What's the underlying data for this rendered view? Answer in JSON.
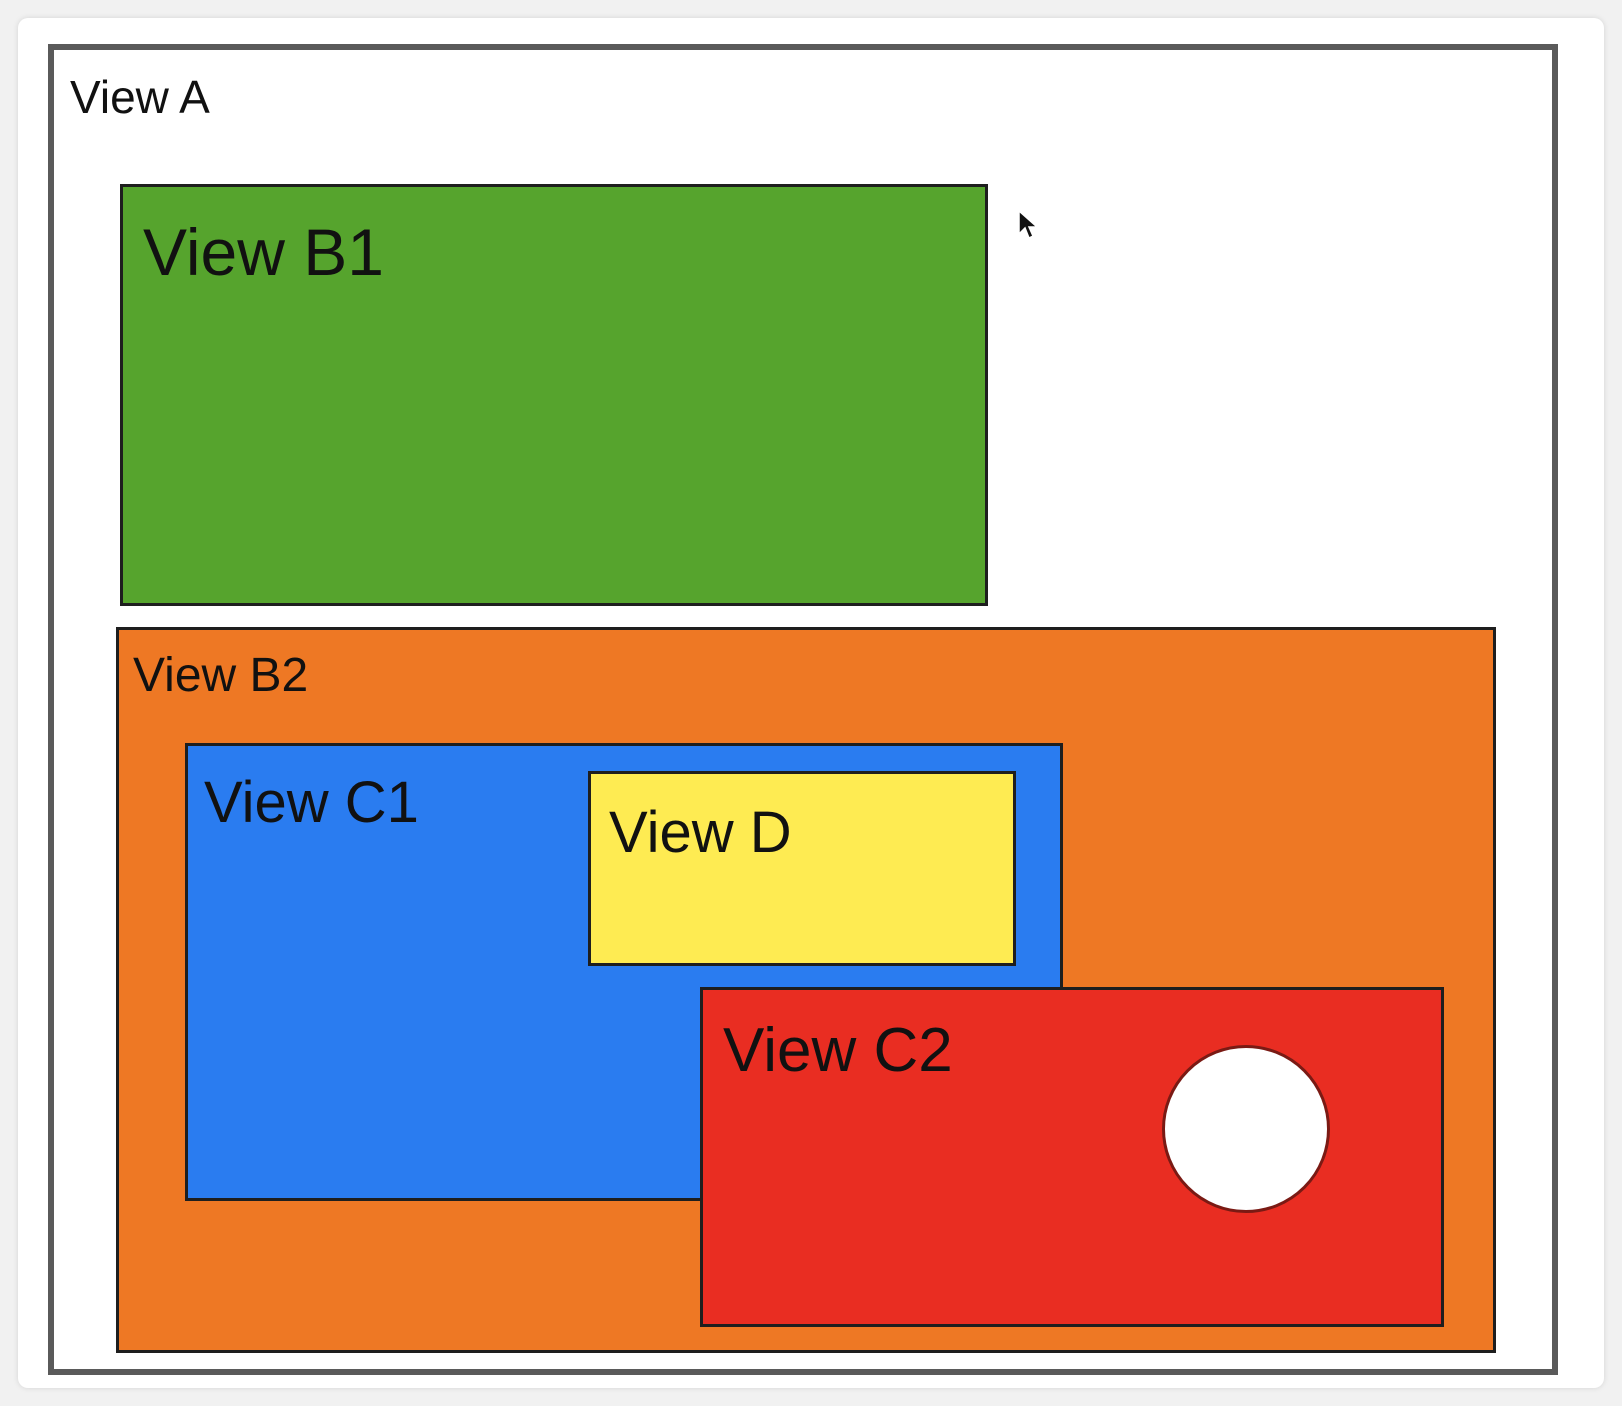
{
  "colors": {
    "page_background": "#f1f1f1",
    "view_a": "#ffffff",
    "view_b1": "#56a42d",
    "view_b2": "#ee7824",
    "view_c1": "#2a7cf0",
    "view_d": "#feeb52",
    "view_c2": "#e92d22",
    "circle": "#ffffff"
  },
  "views": {
    "a": {
      "label": "View A"
    },
    "b1": {
      "label": "View B1"
    },
    "b2": {
      "label": "View B2"
    },
    "c1": {
      "label": "View C1"
    },
    "d": {
      "label": "View D"
    },
    "c2": {
      "label": "View C2"
    }
  },
  "icons": {
    "cursor": "mouse-pointer-icon",
    "circle": "circle-shape"
  }
}
